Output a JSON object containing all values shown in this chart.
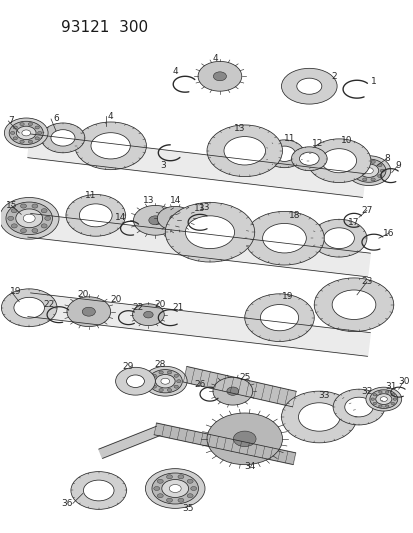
{
  "title": "93121  300",
  "bg_color": "#ffffff",
  "line_color": "#2a2a2a",
  "lw": 0.55,
  "fig_w": 4.14,
  "fig_h": 5.33,
  "dpi": 100
}
